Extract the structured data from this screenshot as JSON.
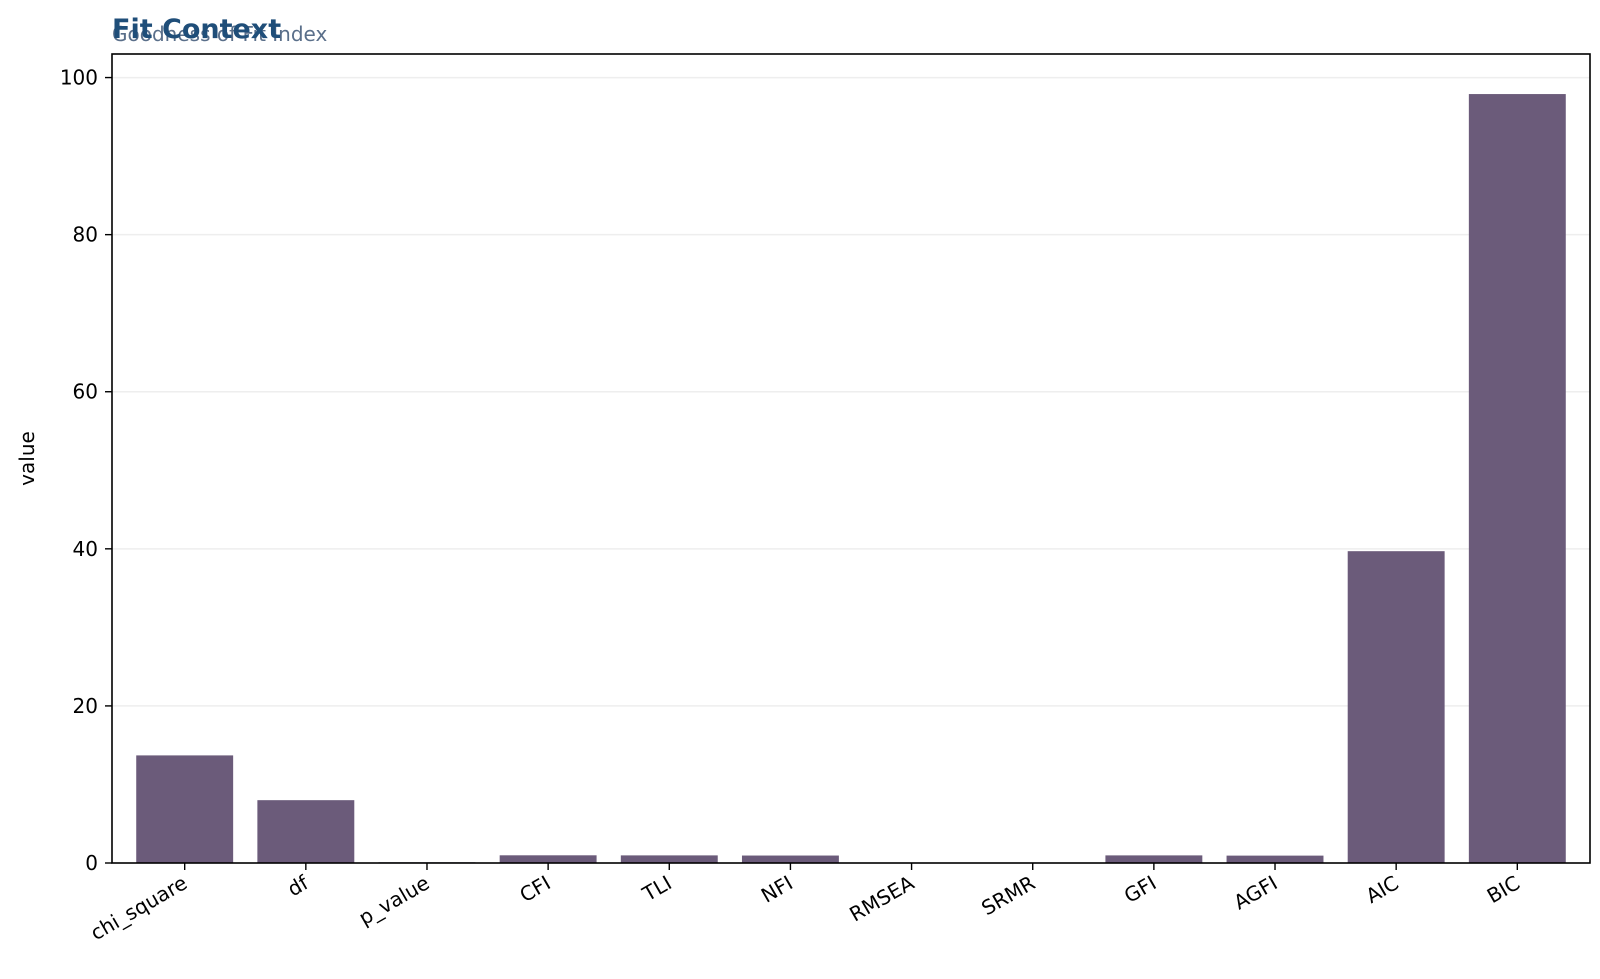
{
  "chart_data": {
    "type": "bar",
    "title": "Fit Context",
    "subtitle": "Goodness of Fit Index",
    "xlabel": "",
    "ylabel": "value",
    "categories": [
      "chi_square",
      "df",
      "p_value",
      "CFI",
      "TLI",
      "NFI",
      "RMSEA",
      "SRMR",
      "GFI",
      "AGFI",
      "AIC",
      "BIC"
    ],
    "values": [
      13.7,
      8.0,
      0.09,
      0.98,
      0.97,
      0.95,
      0.04,
      0.03,
      0.97,
      0.94,
      39.7,
      97.9
    ],
    "ylim": [
      0,
      103
    ],
    "yticks": [
      0,
      20,
      40,
      60,
      80,
      100
    ],
    "grid": "horizontal",
    "legend": "none",
    "colors": {
      "bar": "#6b5b7a",
      "title": "#1f4e79",
      "subtitle": "#5a6f8a",
      "grid": "#eeeeee",
      "axis": "#000000"
    }
  }
}
